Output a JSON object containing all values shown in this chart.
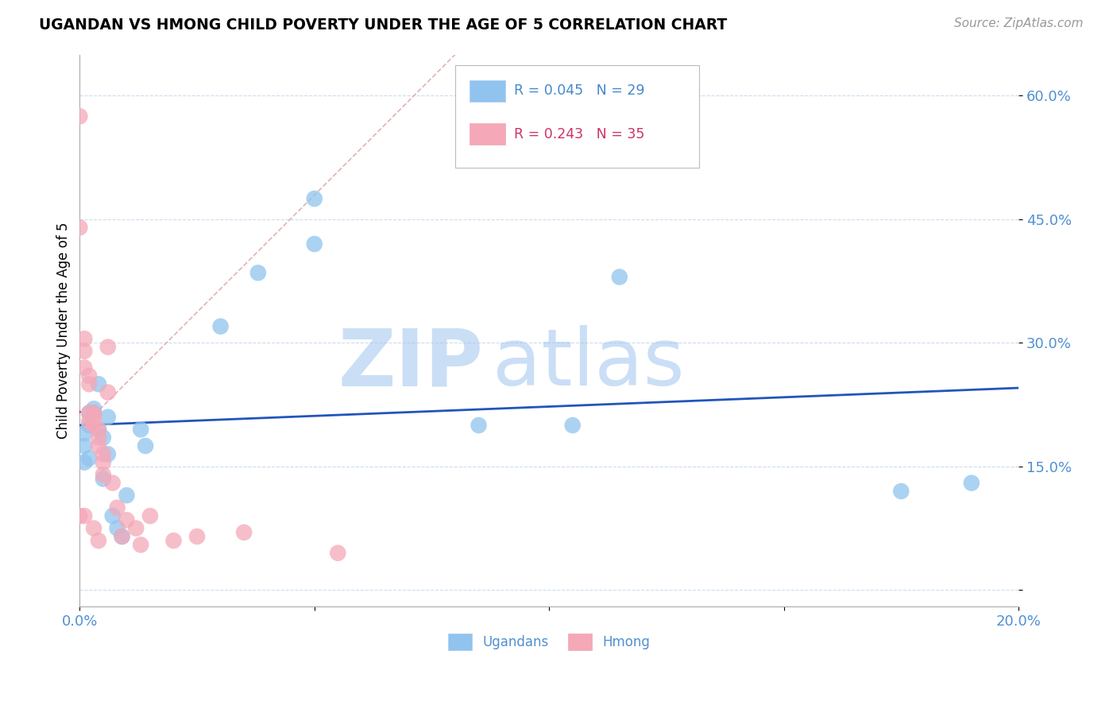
{
  "title": "UGANDAN VS HMONG CHILD POVERTY UNDER THE AGE OF 5 CORRELATION CHART",
  "source": "Source: ZipAtlas.com",
  "ylabel": "Child Poverty Under the Age of 5",
  "xmin": 0.0,
  "xmax": 0.2,
  "ymin": -0.02,
  "ymax": 0.65,
  "yticks": [
    0.0,
    0.15,
    0.3,
    0.45,
    0.6
  ],
  "ytick_labels": [
    "",
    "15.0%",
    "30.0%",
    "45.0%",
    "60.0%"
  ],
  "xticks": [
    0.0,
    0.05,
    0.1,
    0.15,
    0.2
  ],
  "xtick_labels": [
    "0.0%",
    "",
    "",
    "",
    "20.0%"
  ],
  "ugandan_color": "#90C4EE",
  "hmong_color": "#F4A8B8",
  "trend_ugandan_color": "#2255BB",
  "trend_hmong_color": "#CC2244",
  "diag_color": "#DDAAAA",
  "watermark_zip": "ZIP",
  "watermark_atlas": "atlas",
  "watermark_color": "#C8D8F0",
  "ugandan_x": [
    0.001,
    0.001,
    0.001,
    0.002,
    0.002,
    0.002,
    0.003,
    0.003,
    0.004,
    0.004,
    0.005,
    0.005,
    0.006,
    0.006,
    0.007,
    0.008,
    0.009,
    0.01,
    0.013,
    0.014,
    0.03,
    0.038,
    0.05,
    0.05,
    0.085,
    0.105,
    0.115,
    0.175,
    0.19
  ],
  "ugandan_y": [
    0.19,
    0.175,
    0.155,
    0.2,
    0.215,
    0.16,
    0.22,
    0.215,
    0.25,
    0.195,
    0.185,
    0.135,
    0.21,
    0.165,
    0.09,
    0.075,
    0.065,
    0.115,
    0.195,
    0.175,
    0.32,
    0.385,
    0.475,
    0.42,
    0.2,
    0.2,
    0.38,
    0.12,
    0.13
  ],
  "hmong_x": [
    0.0,
    0.0,
    0.0,
    0.001,
    0.001,
    0.001,
    0.001,
    0.002,
    0.002,
    0.002,
    0.002,
    0.003,
    0.003,
    0.003,
    0.003,
    0.004,
    0.004,
    0.004,
    0.004,
    0.005,
    0.005,
    0.005,
    0.006,
    0.006,
    0.007,
    0.008,
    0.009,
    0.01,
    0.012,
    0.013,
    0.015,
    0.02,
    0.025,
    0.035,
    0.055
  ],
  "hmong_y": [
    0.575,
    0.44,
    0.09,
    0.305,
    0.29,
    0.27,
    0.09,
    0.26,
    0.25,
    0.215,
    0.205,
    0.215,
    0.21,
    0.2,
    0.075,
    0.195,
    0.185,
    0.175,
    0.06,
    0.165,
    0.155,
    0.14,
    0.295,
    0.24,
    0.13,
    0.1,
    0.065,
    0.085,
    0.075,
    0.055,
    0.09,
    0.06,
    0.065,
    0.07,
    0.045
  ]
}
